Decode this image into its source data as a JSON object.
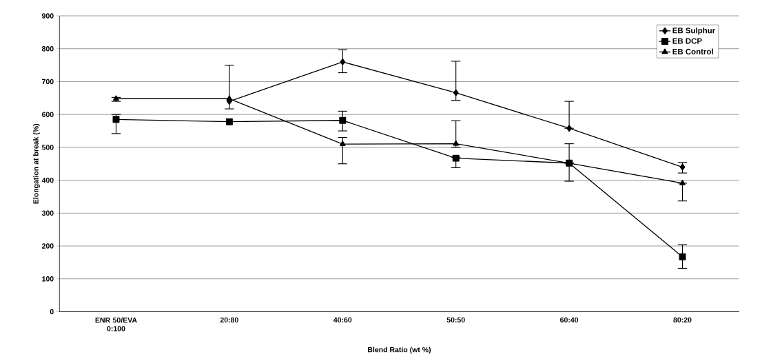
{
  "chart_data": {
    "type": "line",
    "xlabel": "Blend Ratio (wt %)",
    "ylabel": "Elongation at break (%)",
    "categories": [
      "ENR 50/EVA 0:100",
      "20:80",
      "40:60",
      "50:50",
      "60:40",
      "80:20"
    ],
    "ylim": [
      0,
      900
    ],
    "yticks": [
      0,
      100,
      200,
      300,
      400,
      500,
      600,
      700,
      800,
      900
    ],
    "grid": "y",
    "legend": "top right",
    "line_style": "solid",
    "series": [
      {
        "name": "EB Sulphur",
        "color": "#000000",
        "marker": "diamond",
        "values": [
          null,
          640,
          760,
          666,
          558,
          440
        ],
        "errors": [
          null,
          [
            617,
            750
          ],
          [
            727,
            797
          ],
          [
            643,
            762
          ],
          [
            558,
            640
          ],
          [
            422,
            454
          ]
        ]
      },
      {
        "name": "EB DCP",
        "color": "#000000",
        "marker": "square",
        "values": [
          585,
          578,
          582,
          467,
          452,
          167
        ],
        "errors": [
          [
            542,
            600
          ],
          null,
          [
            550,
            610
          ],
          [
            438,
            470
          ],
          [
            397,
            452
          ],
          [
            132,
            204
          ]
        ]
      },
      {
        "name": "EB Control",
        "color": "#000000",
        "marker": "triangle",
        "values": [
          648,
          648,
          510,
          511,
          452,
          391
        ],
        "errors": [
          [
            640,
            652
          ],
          null,
          [
            450,
            530
          ],
          [
            500,
            581
          ],
          [
            452,
            511
          ],
          [
            337,
            391
          ]
        ]
      }
    ]
  }
}
